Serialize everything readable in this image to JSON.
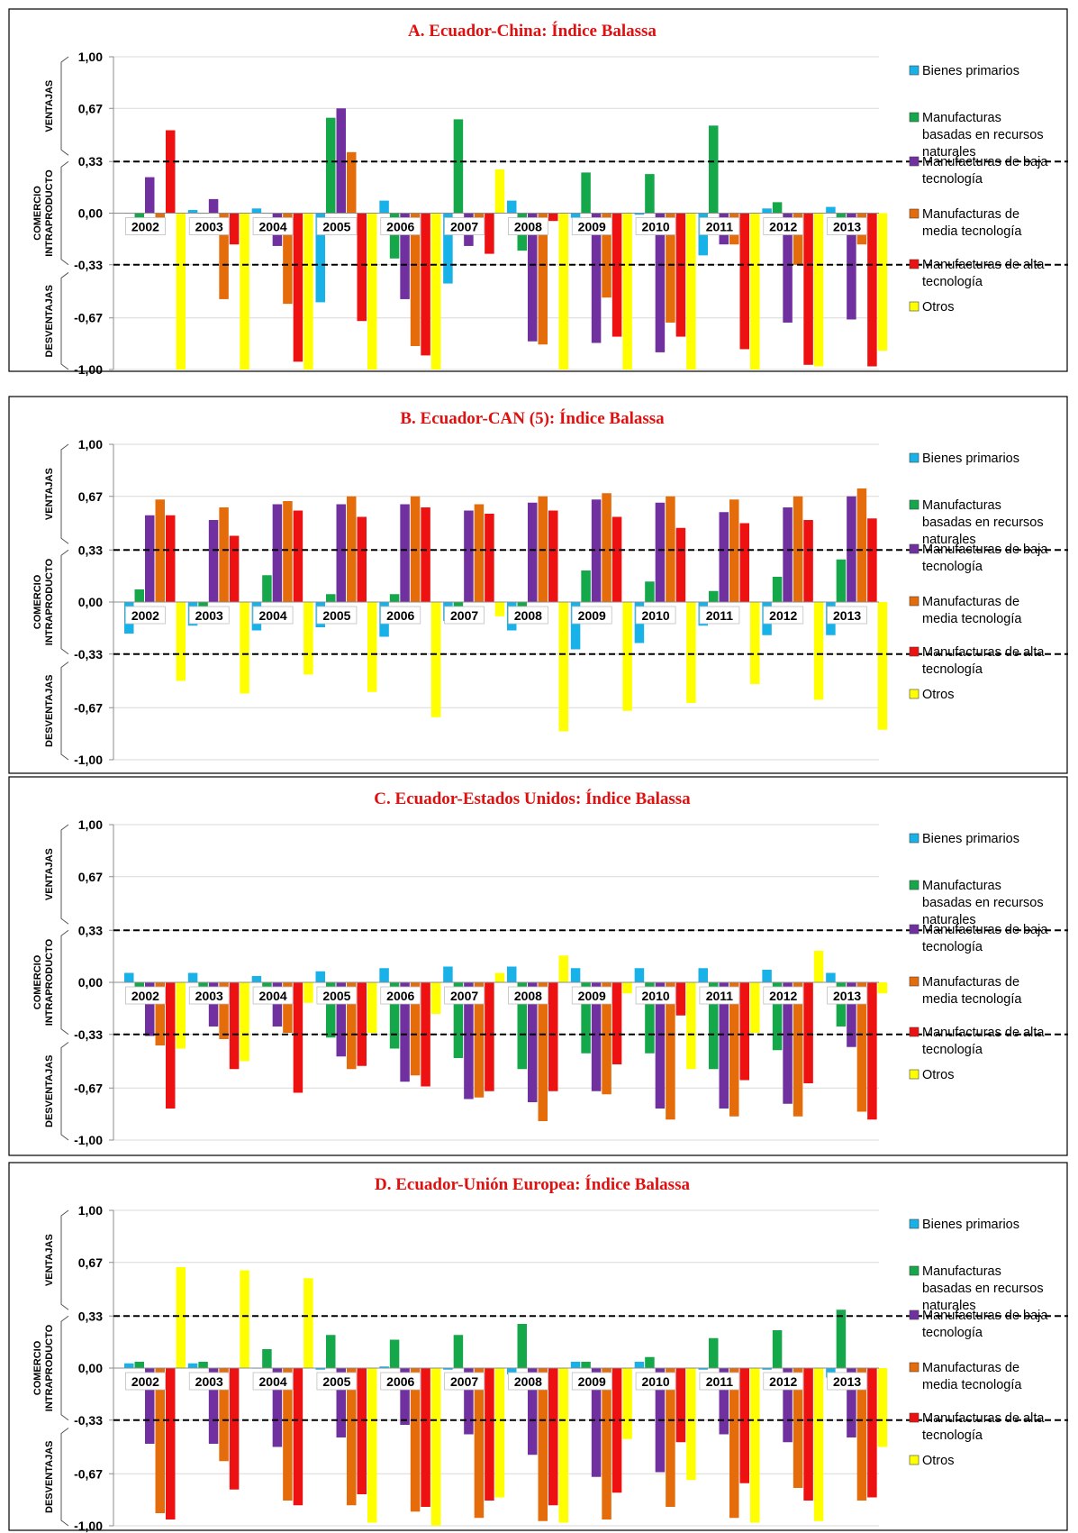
{
  "series_colors": {
    "Bienes primarios": "#19b2e8",
    "Manufacturas basadas en recursos naturales": "#15a84b",
    "Manufacturas de baja tecnología": "#7030a0",
    "Manufacturas de media tecnología": "#e46c0a",
    "Manufacturas de alta tecnología": "#ee1111",
    "Otros": "#ffff00"
  },
  "legend_lines": [
    [
      "Bienes primarios"
    ],
    [
      "Manufacturas",
      "basadas en recursos",
      "naturales"
    ],
    [
      "Manufacturas de baja",
      "tecnología"
    ],
    [
      "Manufacturas de",
      "media tecnología"
    ],
    [
      "Manufacturas de alta",
      "tecnología"
    ],
    [
      "Otros"
    ]
  ],
  "zone_labels": {
    "ventajas": "VENTAJAS",
    "comercio": [
      "COMERCIO",
      "INTRAPRODUCTO"
    ],
    "desventajas": "DESVENTAJAS"
  },
  "reference_lines": [
    0.33,
    -0.33
  ],
  "chart_data": [
    {
      "type": "bar",
      "title": "A. Ecuador-China:  Índice Balassa",
      "categories": [
        "2002",
        "2003",
        "2004",
        "2005",
        "2006",
        "2007",
        "2008",
        "2009",
        "2010",
        "2011",
        "2012",
        "2013"
      ],
      "ylim": [
        -1,
        1
      ],
      "yticks": [
        "1,00",
        "0,67",
        "0,33",
        "0,00",
        "-0,33",
        "-0,67",
        "-1,00"
      ],
      "legend_position": "right",
      "grid": true,
      "series": [
        {
          "name": "Bienes primarios",
          "values": [
            0,
            0.02,
            0.03,
            -0.57,
            0.08,
            -0.45,
            0.08,
            -0.03,
            -0.01,
            -0.27,
            0.03,
            0.04
          ]
        },
        {
          "name": "Manufacturas basadas en recursos naturales",
          "values": [
            -0.05,
            0,
            0,
            0.61,
            -0.29,
            0.6,
            -0.24,
            0.26,
            0.25,
            0.56,
            0.07,
            -0.05
          ]
        },
        {
          "name": "Manufacturas de baja tecnología",
          "values": [
            0.23,
            0.09,
            -0.21,
            0.67,
            -0.55,
            -0.21,
            -0.82,
            -0.83,
            -0.89,
            -0.2,
            -0.7,
            -0.68
          ]
        },
        {
          "name": "Manufacturas de media tecnología",
          "values": [
            -0.05,
            -0.55,
            -0.58,
            0.39,
            -0.85,
            -0.05,
            -0.84,
            -0.54,
            -0.7,
            -0.2,
            -0.33,
            -0.2
          ]
        },
        {
          "name": "Manufacturas de alta tecnología",
          "values": [
            0.53,
            -0.2,
            -0.95,
            -0.69,
            -0.91,
            -0.26,
            -0.05,
            -0.79,
            -0.79,
            -0.87,
            -0.97,
            -0.98
          ]
        },
        {
          "name": "Otros",
          "values": [
            -1,
            -1,
            -1,
            -1,
            -1,
            0.28,
            -1,
            -1,
            -1,
            -1,
            -0.98,
            -0.88
          ]
        }
      ]
    },
    {
      "type": "bar",
      "title": "B. Ecuador-CAN (5):  Índice Balassa",
      "categories": [
        "2002",
        "2003",
        "2004",
        "2005",
        "2006",
        "2007",
        "2008",
        "2009",
        "2010",
        "2011",
        "2012",
        "2013"
      ],
      "ylim": [
        -1,
        1
      ],
      "yticks": [
        "1,00",
        "0,67",
        "0,33",
        "0,00",
        "-0,33",
        "-0,67",
        "-1,00"
      ],
      "legend_position": "right",
      "grid": true,
      "series": [
        {
          "name": "Bienes primarios",
          "values": [
            -0.2,
            -0.15,
            -0.18,
            -0.16,
            -0.22,
            -0.12,
            -0.18,
            -0.3,
            -0.26,
            -0.15,
            -0.21,
            -0.21
          ]
        },
        {
          "name": "Manufacturas basadas en recursos naturales",
          "values": [
            0.08,
            -0.03,
            0.17,
            0.05,
            0.05,
            -0.06,
            -0.05,
            0.2,
            0.13,
            0.07,
            0.16,
            0.27
          ]
        },
        {
          "name": "Manufacturas de baja tecnología",
          "values": [
            0.55,
            0.52,
            0.62,
            0.62,
            0.62,
            0.58,
            0.63,
            0.65,
            0.63,
            0.57,
            0.6,
            0.67
          ]
        },
        {
          "name": "Manufacturas de media tecnología",
          "values": [
            0.65,
            0.6,
            0.64,
            0.67,
            0.67,
            0.62,
            0.67,
            0.69,
            0.67,
            0.65,
            0.67,
            0.72
          ]
        },
        {
          "name": "Manufacturas de alta tecnología",
          "values": [
            0.55,
            0.42,
            0.58,
            0.54,
            0.6,
            0.56,
            0.58,
            0.54,
            0.47,
            0.5,
            0.52,
            0.53
          ]
        },
        {
          "name": "Otros",
          "values": [
            -0.5,
            -0.58,
            -0.46,
            -0.57,
            -0.73,
            -0.09,
            -0.82,
            -0.69,
            -0.64,
            -0.52,
            -0.62,
            -0.81
          ]
        }
      ]
    },
    {
      "type": "bar",
      "title": "C. Ecuador-Estados Unidos:  Índice Balassa",
      "categories": [
        "2002",
        "2003",
        "2004",
        "2005",
        "2006",
        "2007",
        "2008",
        "2009",
        "2010",
        "2011",
        "2012",
        "2013"
      ],
      "ylim": [
        -1,
        1
      ],
      "yticks": [
        "1,00",
        "0,67",
        "0,33",
        "0,00",
        "-0,33",
        "-0,67",
        "-1,00"
      ],
      "legend_position": "right",
      "grid": true,
      "series": [
        {
          "name": "Bienes primarios",
          "values": [
            0.06,
            0.06,
            0.04,
            0.07,
            0.09,
            0.1,
            0.1,
            0.09,
            0.09,
            0.09,
            0.08,
            0.06
          ]
        },
        {
          "name": "Manufacturas basadas en recursos naturales",
          "values": [
            -0.05,
            -0.05,
            -0.05,
            -0.35,
            -0.42,
            -0.48,
            -0.55,
            -0.45,
            -0.45,
            -0.55,
            -0.43,
            -0.28
          ]
        },
        {
          "name": "Manufacturas de baja tecnología",
          "values": [
            -0.34,
            -0.28,
            -0.28,
            -0.47,
            -0.63,
            -0.74,
            -0.76,
            -0.69,
            -0.8,
            -0.8,
            -0.77,
            -0.41
          ]
        },
        {
          "name": "Manufacturas de media tecnología",
          "values": [
            -0.4,
            -0.36,
            -0.32,
            -0.55,
            -0.59,
            -0.73,
            -0.88,
            -0.71,
            -0.87,
            -0.85,
            -0.85,
            -0.82
          ]
        },
        {
          "name": "Manufacturas de alta tecnología",
          "values": [
            -0.8,
            -0.55,
            -0.7,
            -0.53,
            -0.66,
            -0.69,
            -0.69,
            -0.52,
            -0.21,
            -0.62,
            -0.64,
            -0.87
          ]
        },
        {
          "name": "Otros",
          "values": [
            -0.42,
            -0.5,
            -0.13,
            -0.32,
            -0.2,
            0.06,
            0.17,
            -0.07,
            -0.55,
            -0.32,
            0.2,
            -0.07
          ]
        }
      ]
    },
    {
      "type": "bar",
      "title": "D. Ecuador-Unión Europea:  Índice Balassa",
      "categories": [
        "2002",
        "2003",
        "2004",
        "2005",
        "2006",
        "2007",
        "2008",
        "2009",
        "2010",
        "2011",
        "2012",
        "2013"
      ],
      "ylim": [
        -1,
        1
      ],
      "yticks": [
        "1,00",
        "0,67",
        "0,33",
        "0,00",
        "-0,33",
        "-0,67",
        "-1,00"
      ],
      "legend_position": "right",
      "grid": true,
      "series": [
        {
          "name": "Bienes primarios",
          "values": [
            0.03,
            0.03,
            0,
            -0.01,
            0.01,
            -0.01,
            -0.04,
            0.04,
            0.04,
            -0.01,
            -0.01,
            -0.06
          ]
        },
        {
          "name": "Manufacturas basadas en recursos naturales",
          "values": [
            0.04,
            0.04,
            0.12,
            0.21,
            0.18,
            0.21,
            0.28,
            0.04,
            0.07,
            0.19,
            0.24,
            0.37
          ]
        },
        {
          "name": "Manufacturas de baja tecnología",
          "values": [
            -0.48,
            -0.48,
            -0.5,
            -0.44,
            -0.36,
            -0.42,
            -0.55,
            -0.69,
            -0.66,
            -0.42,
            -0.47,
            -0.44
          ]
        },
        {
          "name": "Manufacturas de media tecnología",
          "values": [
            -0.92,
            -0.59,
            -0.84,
            -0.87,
            -0.91,
            -0.95,
            -0.97,
            -0.96,
            -0.88,
            -0.95,
            -0.76,
            -0.84
          ]
        },
        {
          "name": "Manufacturas de alta tecnología",
          "values": [
            -0.96,
            -0.77,
            -0.87,
            -0.8,
            -0.88,
            -0.84,
            -0.87,
            -0.79,
            -0.47,
            -0.73,
            -0.84,
            -0.82
          ]
        },
        {
          "name": "Otros",
          "values": [
            0.64,
            0.62,
            0.57,
            -0.98,
            -1,
            -0.82,
            -0.98,
            -0.45,
            -0.71,
            -0.98,
            -0.97,
            -0.5
          ]
        }
      ]
    }
  ]
}
